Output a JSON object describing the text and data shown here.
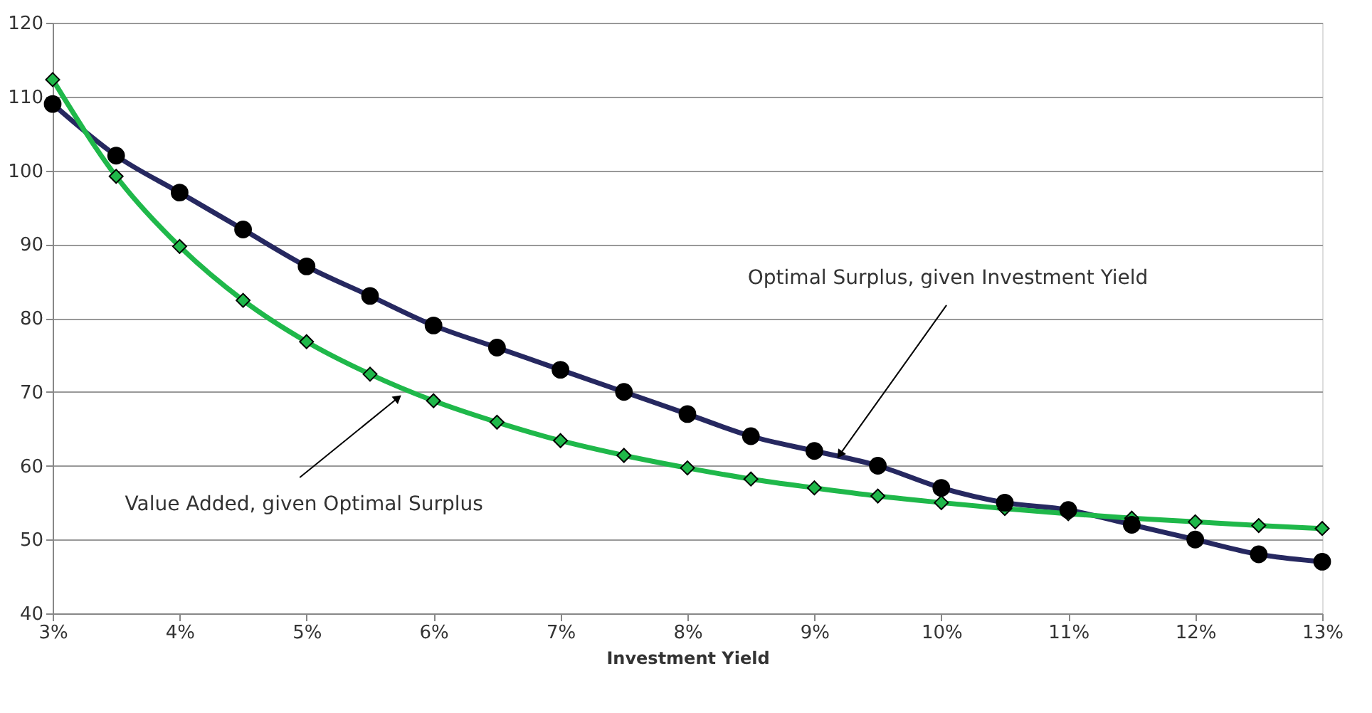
{
  "chart_data": {
    "type": "line",
    "xlabel": "Investment Yield",
    "x": [
      3,
      3.5,
      4,
      4.5,
      5,
      5.5,
      6,
      6.5,
      7,
      7.5,
      8,
      8.5,
      9,
      9.5,
      10,
      10.5,
      11,
      11.5,
      12,
      12.5,
      13
    ],
    "series": [
      {
        "color": "#262860",
        "marker": "circle",
        "values": [
          109,
          102,
          97,
          92,
          87,
          83,
          79,
          76,
          73,
          70,
          67,
          64,
          62,
          60,
          57,
          55,
          54,
          52,
          50,
          48,
          47
        ]
      },
      {
        "color": "#1fb84a",
        "marker": "diamond",
        "values": [
          112.3,
          99.2,
          89.7,
          82.4,
          76.8,
          72.4,
          68.8,
          65.9,
          63.4,
          61.4,
          59.7,
          58.2,
          57.0,
          55.9,
          55.0,
          54.2,
          53.5,
          52.9,
          52.4,
          51.9,
          51.5
        ]
      }
    ],
    "xlim": [
      3,
      13
    ],
    "xticks": [
      {
        "value": 3,
        "label": "3%"
      },
      {
        "value": 4,
        "label": "4%"
      },
      {
        "value": 5,
        "label": "5%"
      },
      {
        "value": 6,
        "label": "6%"
      },
      {
        "value": 7,
        "label": "7%"
      },
      {
        "value": 8,
        "label": "8%"
      },
      {
        "value": 9,
        "label": "9%"
      },
      {
        "value": 10,
        "label": "10%"
      },
      {
        "value": 11,
        "label": "11%"
      },
      {
        "value": 12,
        "label": "12%"
      },
      {
        "value": 13,
        "label": "13%"
      }
    ],
    "ylim": [
      40,
      120
    ],
    "yticks": [
      40,
      50,
      60,
      70,
      80,
      90,
      100,
      110,
      120
    ],
    "grid": "y",
    "line_style": "solid",
    "annotations": [
      {
        "text": "Optimal Surplus, given Investment Yield",
        "x": 9.2,
        "y": 61.5
      },
      {
        "text": "Value Added, given Optimal Surplus",
        "x": 5.72,
        "y": 69.2
      }
    ]
  }
}
